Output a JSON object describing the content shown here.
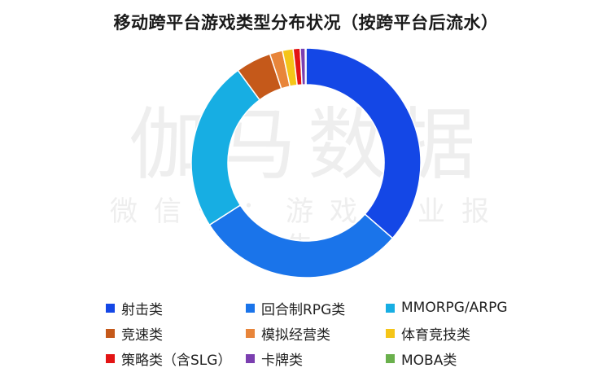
{
  "chart_data": {
    "type": "pie",
    "variant": "donut",
    "title": "移动跨平台游戏类型分布状况（按跨平台后流水）",
    "categories": [
      "射击类",
      "回合制RPG类",
      "MMORPG/ARPG",
      "竞速类",
      "模拟经营类",
      "体育竞技类",
      "策略类（含SLG）",
      "卡牌类",
      "MOBA类"
    ],
    "values": [
      36.4,
      29.5,
      24.0,
      5.0,
      1.8,
      1.5,
      1.0,
      0.7,
      0.1
    ],
    "unit": "%",
    "colors": [
      "#1447e6",
      "#1a74ea",
      "#17aee3",
      "#c5591a",
      "#e8853a",
      "#f5c518",
      "#e31414",
      "#7b3fb0",
      "#6ab04c"
    ],
    "legend_position": "bottom",
    "grid": false
  },
  "watermark": {
    "main": "伽马数据",
    "sub": "微信号：游戏产业报告"
  }
}
